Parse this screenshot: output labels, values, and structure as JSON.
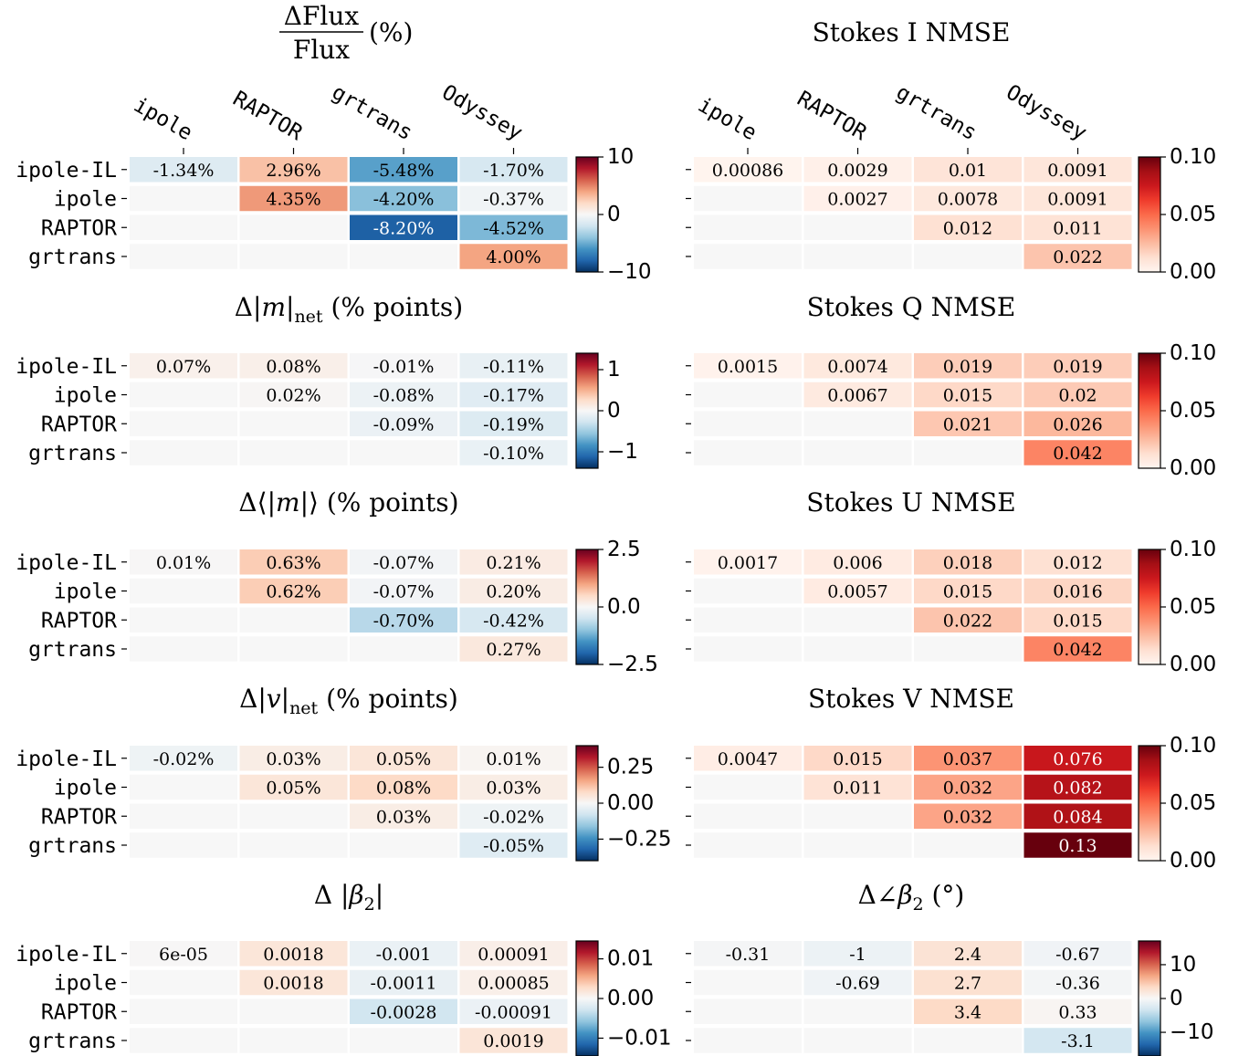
{
  "row_labels": [
    "ipole-IL",
    "ipole",
    "RAPTOR",
    "grtrans"
  ],
  "col_labels": [
    "ipole",
    "RAPTOR",
    "grtrans",
    "Odyssey"
  ],
  "chart_data": [
    {
      "type": "heatmap",
      "title": "ΔFlux/Flux (%)",
      "title_parts": {
        "numerator": "ΔFlux",
        "denominator": "Flux",
        "suffix": "(%)"
      },
      "cmap": "RdBu_r",
      "vlim": [
        -10,
        10
      ],
      "colorbar_ticks": [
        {
          "value": 10,
          "label": "10"
        },
        {
          "value": 0,
          "label": "0"
        },
        {
          "value": -10,
          "label": "−10"
        }
      ],
      "values": [
        [
          -1.34,
          2.96,
          -5.48,
          -1.7
        ],
        [
          null,
          4.35,
          -4.2,
          -0.37
        ],
        [
          null,
          null,
          -8.2,
          -4.52
        ],
        [
          null,
          null,
          null,
          4.0
        ]
      ],
      "labels": [
        [
          "-1.34%",
          "2.96%",
          "-5.48%",
          "-1.70%"
        ],
        [
          "",
          "4.35%",
          "-4.20%",
          "-0.37%"
        ],
        [
          "",
          "",
          "-8.20%",
          "-4.52%"
        ],
        [
          "",
          "",
          "",
          "4.00%"
        ]
      ]
    },
    {
      "type": "heatmap",
      "title": "Stokes I NMSE",
      "cmap": "Reds",
      "vlim": [
        0,
        0.1
      ],
      "colorbar_ticks": [
        {
          "value": 0.1,
          "label": "0.10"
        },
        {
          "value": 0.05,
          "label": "0.05"
        },
        {
          "value": 0,
          "label": "0.00"
        }
      ],
      "values": [
        [
          0.00086,
          0.0029,
          0.01,
          0.0091
        ],
        [
          null,
          0.0027,
          0.0078,
          0.0091
        ],
        [
          null,
          null,
          0.012,
          0.011
        ],
        [
          null,
          null,
          null,
          0.022
        ]
      ],
      "labels": [
        [
          "0.00086",
          "0.0029",
          "0.01",
          "0.0091"
        ],
        [
          "",
          "0.0027",
          "0.0078",
          "0.0091"
        ],
        [
          "",
          "",
          "0.012",
          "0.011"
        ],
        [
          "",
          "",
          "",
          "0.022"
        ]
      ]
    },
    {
      "type": "heatmap",
      "title": "Δ|m|net (% points)",
      "title_parts": {
        "pre": "Δ|",
        "var": "m",
        "post": "|",
        "sub": "net",
        "suffix": " (% points)"
      },
      "cmap": "RdBu_r",
      "vlim": [
        -1.4,
        1.4
      ],
      "colorbar_ticks": [
        {
          "value": 1,
          "label": "1"
        },
        {
          "value": 0,
          "label": "0"
        },
        {
          "value": -1,
          "label": "−1"
        }
      ],
      "values": [
        [
          0.07,
          0.08,
          -0.01,
          -0.11
        ],
        [
          null,
          0.02,
          -0.08,
          -0.17
        ],
        [
          null,
          null,
          -0.09,
          -0.19
        ],
        [
          null,
          null,
          null,
          -0.1
        ]
      ],
      "labels": [
        [
          "0.07%",
          "0.08%",
          "-0.01%",
          "-0.11%"
        ],
        [
          "",
          "0.02%",
          "-0.08%",
          "-0.17%"
        ],
        [
          "",
          "",
          "-0.09%",
          "-0.19%"
        ],
        [
          "",
          "",
          "",
          "-0.10%"
        ]
      ]
    },
    {
      "type": "heatmap",
      "title": "Stokes Q NMSE",
      "cmap": "Reds",
      "vlim": [
        0,
        0.1
      ],
      "colorbar_ticks": [
        {
          "value": 0.1,
          "label": "0.10"
        },
        {
          "value": 0.05,
          "label": "0.05"
        },
        {
          "value": 0,
          "label": "0.00"
        }
      ],
      "values": [
        [
          0.0015,
          0.0074,
          0.019,
          0.019
        ],
        [
          null,
          0.0067,
          0.015,
          0.02
        ],
        [
          null,
          null,
          0.021,
          0.026
        ],
        [
          null,
          null,
          null,
          0.042
        ]
      ],
      "labels": [
        [
          "0.0015",
          "0.0074",
          "0.019",
          "0.019"
        ],
        [
          "",
          "0.0067",
          "0.015",
          "0.02"
        ],
        [
          "",
          "",
          "0.021",
          "0.026"
        ],
        [
          "",
          "",
          "",
          "0.042"
        ]
      ]
    },
    {
      "type": "heatmap",
      "title": "Δ⟨|m|⟩ (% points)",
      "title_parts": {
        "pre": "Δ⟨|",
        "var": "m",
        "post": "|⟩",
        "suffix": " (% points)"
      },
      "cmap": "RdBu_r",
      "vlim": [
        -2.5,
        2.5
      ],
      "colorbar_ticks": [
        {
          "value": 2.5,
          "label": "2.5"
        },
        {
          "value": 0,
          "label": "0.0"
        },
        {
          "value": -2.5,
          "label": "−2.5"
        }
      ],
      "values": [
        [
          0.01,
          0.63,
          -0.07,
          0.21
        ],
        [
          null,
          0.62,
          -0.07,
          0.2
        ],
        [
          null,
          null,
          -0.7,
          -0.42
        ],
        [
          null,
          null,
          null,
          0.27
        ]
      ],
      "labels": [
        [
          "0.01%",
          "0.63%",
          "-0.07%",
          "0.21%"
        ],
        [
          "",
          "0.62%",
          "-0.07%",
          "0.20%"
        ],
        [
          "",
          "",
          "-0.70%",
          "-0.42%"
        ],
        [
          "",
          "",
          "",
          "0.27%"
        ]
      ]
    },
    {
      "type": "heatmap",
      "title": "Stokes U NMSE",
      "cmap": "Reds",
      "vlim": [
        0,
        0.1
      ],
      "colorbar_ticks": [
        {
          "value": 0.1,
          "label": "0.10"
        },
        {
          "value": 0.05,
          "label": "0.05"
        },
        {
          "value": 0,
          "label": "0.00"
        }
      ],
      "values": [
        [
          0.0017,
          0.006,
          0.018,
          0.012
        ],
        [
          null,
          0.0057,
          0.015,
          0.016
        ],
        [
          null,
          null,
          0.022,
          0.015
        ],
        [
          null,
          null,
          null,
          0.042
        ]
      ],
      "labels": [
        [
          "0.0017",
          "0.006",
          "0.018",
          "0.012"
        ],
        [
          "",
          "0.0057",
          "0.015",
          "0.016"
        ],
        [
          "",
          "",
          "0.022",
          "0.015"
        ],
        [
          "",
          "",
          "",
          "0.042"
        ]
      ]
    },
    {
      "type": "heatmap",
      "title": "Δ|v|net (% points)",
      "title_parts": {
        "pre": "Δ|",
        "var": "v",
        "post": "|",
        "sub": "net",
        "suffix": " (% points)"
      },
      "cmap": "RdBu_r",
      "vlim": [
        -0.4,
        0.4
      ],
      "colorbar_ticks": [
        {
          "value": 0.25,
          "label": "0.25"
        },
        {
          "value": 0,
          "label": "0.00"
        },
        {
          "value": -0.25,
          "label": "−0.25"
        }
      ],
      "values": [
        [
          -0.02,
          0.03,
          0.05,
          0.01
        ],
        [
          null,
          0.05,
          0.08,
          0.03
        ],
        [
          null,
          null,
          0.03,
          -0.02
        ],
        [
          null,
          null,
          null,
          -0.05
        ]
      ],
      "labels": [
        [
          "-0.02%",
          "0.03%",
          "0.05%",
          "0.01%"
        ],
        [
          "",
          "0.05%",
          "0.08%",
          "0.03%"
        ],
        [
          "",
          "",
          "0.03%",
          "-0.02%"
        ],
        [
          "",
          "",
          "",
          "-0.05%"
        ]
      ]
    },
    {
      "type": "heatmap",
      "title": "Stokes V NMSE",
      "cmap": "Reds",
      "vlim": [
        0,
        0.1
      ],
      "colorbar_ticks": [
        {
          "value": 0.1,
          "label": "0.10"
        },
        {
          "value": 0.05,
          "label": "0.05"
        },
        {
          "value": 0,
          "label": "0.00"
        }
      ],
      "values": [
        [
          0.0047,
          0.015,
          0.037,
          0.076
        ],
        [
          null,
          0.011,
          0.032,
          0.082
        ],
        [
          null,
          null,
          0.032,
          0.084
        ],
        [
          null,
          null,
          null,
          0.13
        ]
      ],
      "labels": [
        [
          "0.0047",
          "0.015",
          "0.037",
          "0.076"
        ],
        [
          "",
          "0.011",
          "0.032",
          "0.082"
        ],
        [
          "",
          "",
          "0.032",
          "0.084"
        ],
        [
          "",
          "",
          "",
          "0.13"
        ]
      ]
    },
    {
      "type": "heatmap",
      "title": "Δ |β2|",
      "title_parts": {
        "pre": "Δ |",
        "var": "β",
        "sub": "2",
        "post": "|"
      },
      "cmap": "RdBu_r",
      "vlim": [
        -0.0145,
        0.0145
      ],
      "colorbar_ticks": [
        {
          "value": 0.01,
          "label": "0.01"
        },
        {
          "value": 0,
          "label": "0.00"
        },
        {
          "value": -0.01,
          "label": "−0.01"
        }
      ],
      "values": [
        [
          6e-05,
          0.0018,
          -0.001,
          0.00091
        ],
        [
          null,
          0.0018,
          -0.0011,
          0.00085
        ],
        [
          null,
          null,
          -0.0028,
          -0.00091
        ],
        [
          null,
          null,
          null,
          0.0019
        ]
      ],
      "labels": [
        [
          "6e-05",
          "0.0018",
          "-0.001",
          "0.00091"
        ],
        [
          "",
          "0.0018",
          "-0.0011",
          "0.00085"
        ],
        [
          "",
          "",
          "-0.0028",
          "-0.00091"
        ],
        [
          "",
          "",
          "",
          "0.0019"
        ]
      ]
    },
    {
      "type": "heatmap",
      "title": "Δ∠β2 (°)",
      "title_parts": {
        "pre": "Δ∠",
        "var": "β",
        "sub": "2",
        "suffix": " (°)"
      },
      "cmap": "RdBu_r",
      "vlim": [
        -17,
        17
      ],
      "colorbar_ticks": [
        {
          "value": 10,
          "label": "10"
        },
        {
          "value": 0,
          "label": "0"
        },
        {
          "value": -10,
          "label": "−10"
        }
      ],
      "values": [
        [
          -0.31,
          -1,
          2.4,
          -0.67
        ],
        [
          null,
          -0.69,
          2.7,
          -0.36
        ],
        [
          null,
          null,
          3.4,
          0.33
        ],
        [
          null,
          null,
          null,
          -3.1
        ]
      ],
      "labels": [
        [
          "-0.31",
          "-1",
          "2.4",
          "-0.67"
        ],
        [
          "",
          "-0.69",
          "2.7",
          "-0.36"
        ],
        [
          "",
          "",
          "3.4",
          "0.33"
        ],
        [
          "",
          "",
          "",
          "-3.1"
        ]
      ]
    }
  ]
}
